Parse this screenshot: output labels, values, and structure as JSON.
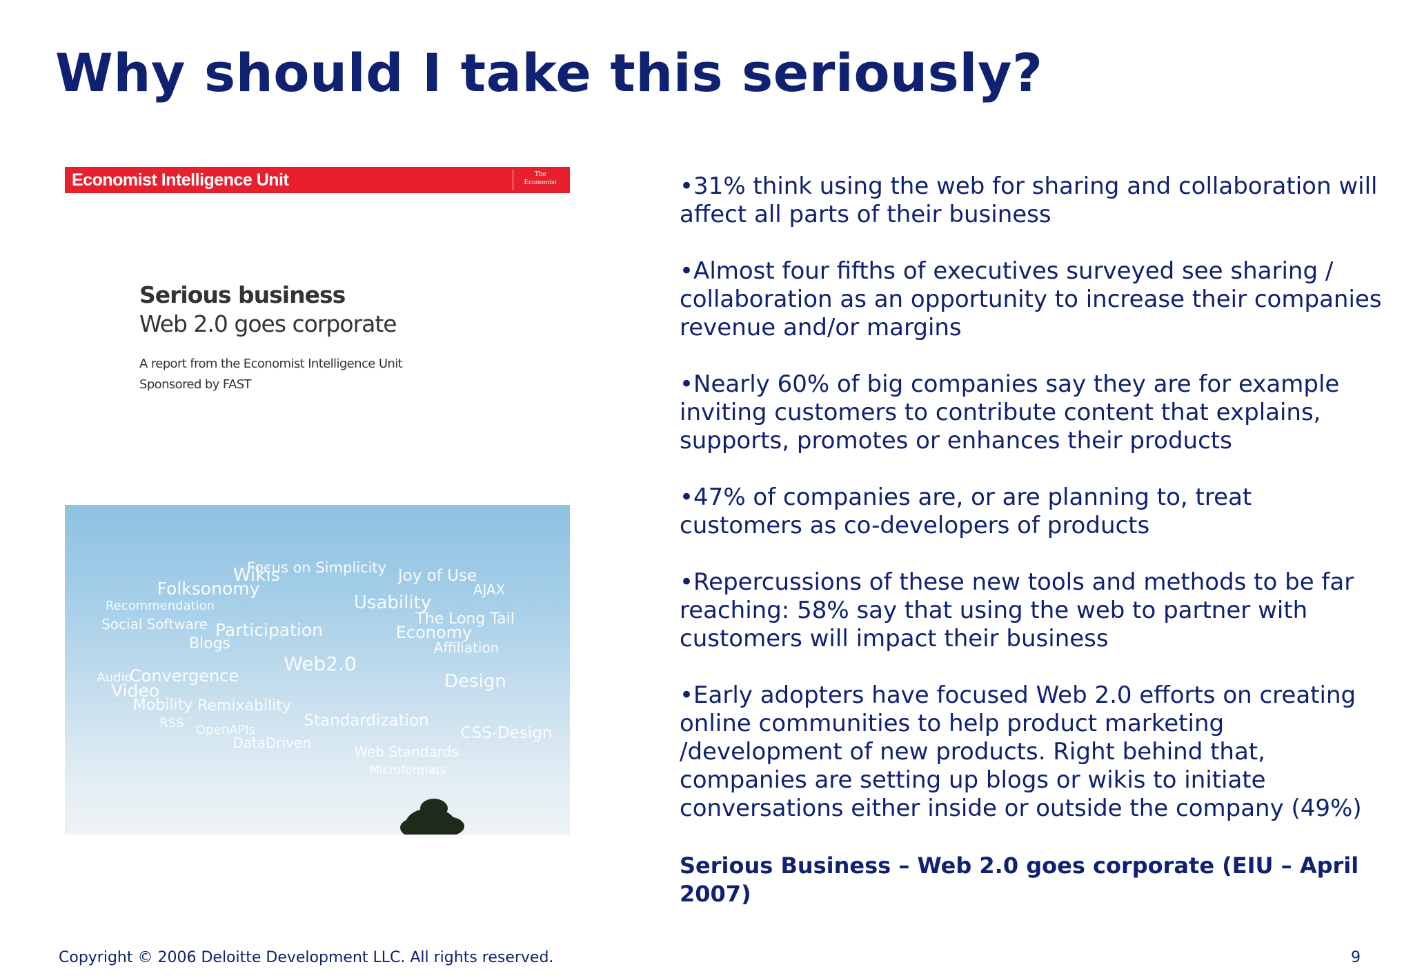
{
  "slide": {
    "title": "Why should I take this seriously?"
  },
  "cover": {
    "publisher": "Economist Intelligence Unit",
    "mark_line1": "The",
    "mark_line2": "Economist",
    "title": "Serious business",
    "subtitle": "Web 2.0 goes corporate",
    "line1": "A report from the Economist Intelligence Unit",
    "line2": "Sponsored by FAST",
    "tags": [
      "Focus on Simplicity",
      "Wikis",
      "Joy of Use",
      "Folksonomy",
      "AJAX",
      "Usability",
      "Recommendation",
      "The Long Tail",
      "Social Software",
      "Participation",
      "Economy",
      "Blogs",
      "Affiliation",
      "Web2.0",
      "Convergence",
      "Design",
      "Audio",
      "Video",
      "Mobility",
      "Remixability",
      "RSS",
      "Standardization",
      "OpenAPIs",
      "CSS-Design",
      "DataDriven",
      "Web Standards",
      "Microformats"
    ]
  },
  "bullets": [
    "•31% think using the web for sharing and collaboration will\naffect all parts of their business",
    "•Almost four fifths of executives surveyed see sharing /\ncollaboration as an opportunity to increase their companies\nrevenue and/or margins",
    "•Nearly 60% of big companies say they are for example\ninviting customers to contribute content that explains,\nsupports, promotes or enhances their products",
    "•47% of companies are, or are planning to, treat\ncustomers as co-developers of products",
    "•Repercussions of these new tools and methods to be far\nreaching: 58% say that using the web to partner with\ncustomers will impact their business",
    "•Early adopters have focused Web 2.0 efforts on creating\nonline communities to help product marketing\n/development of new products. Right behind that,\ncompanies are setting up blogs or wikis to initiate\nconversations either inside or outside the company (49%)"
  ],
  "source": "Serious Business – Web 2.0 goes corporate (EIU – April\n2007)",
  "footer": {
    "copyright": "Copyright © 2006 Deloitte Development LLC. All rights reserved.",
    "page_number": "9"
  },
  "colors": {
    "title": "#0f2170",
    "band": "#e8202e",
    "sky": "#a6cfe8"
  }
}
